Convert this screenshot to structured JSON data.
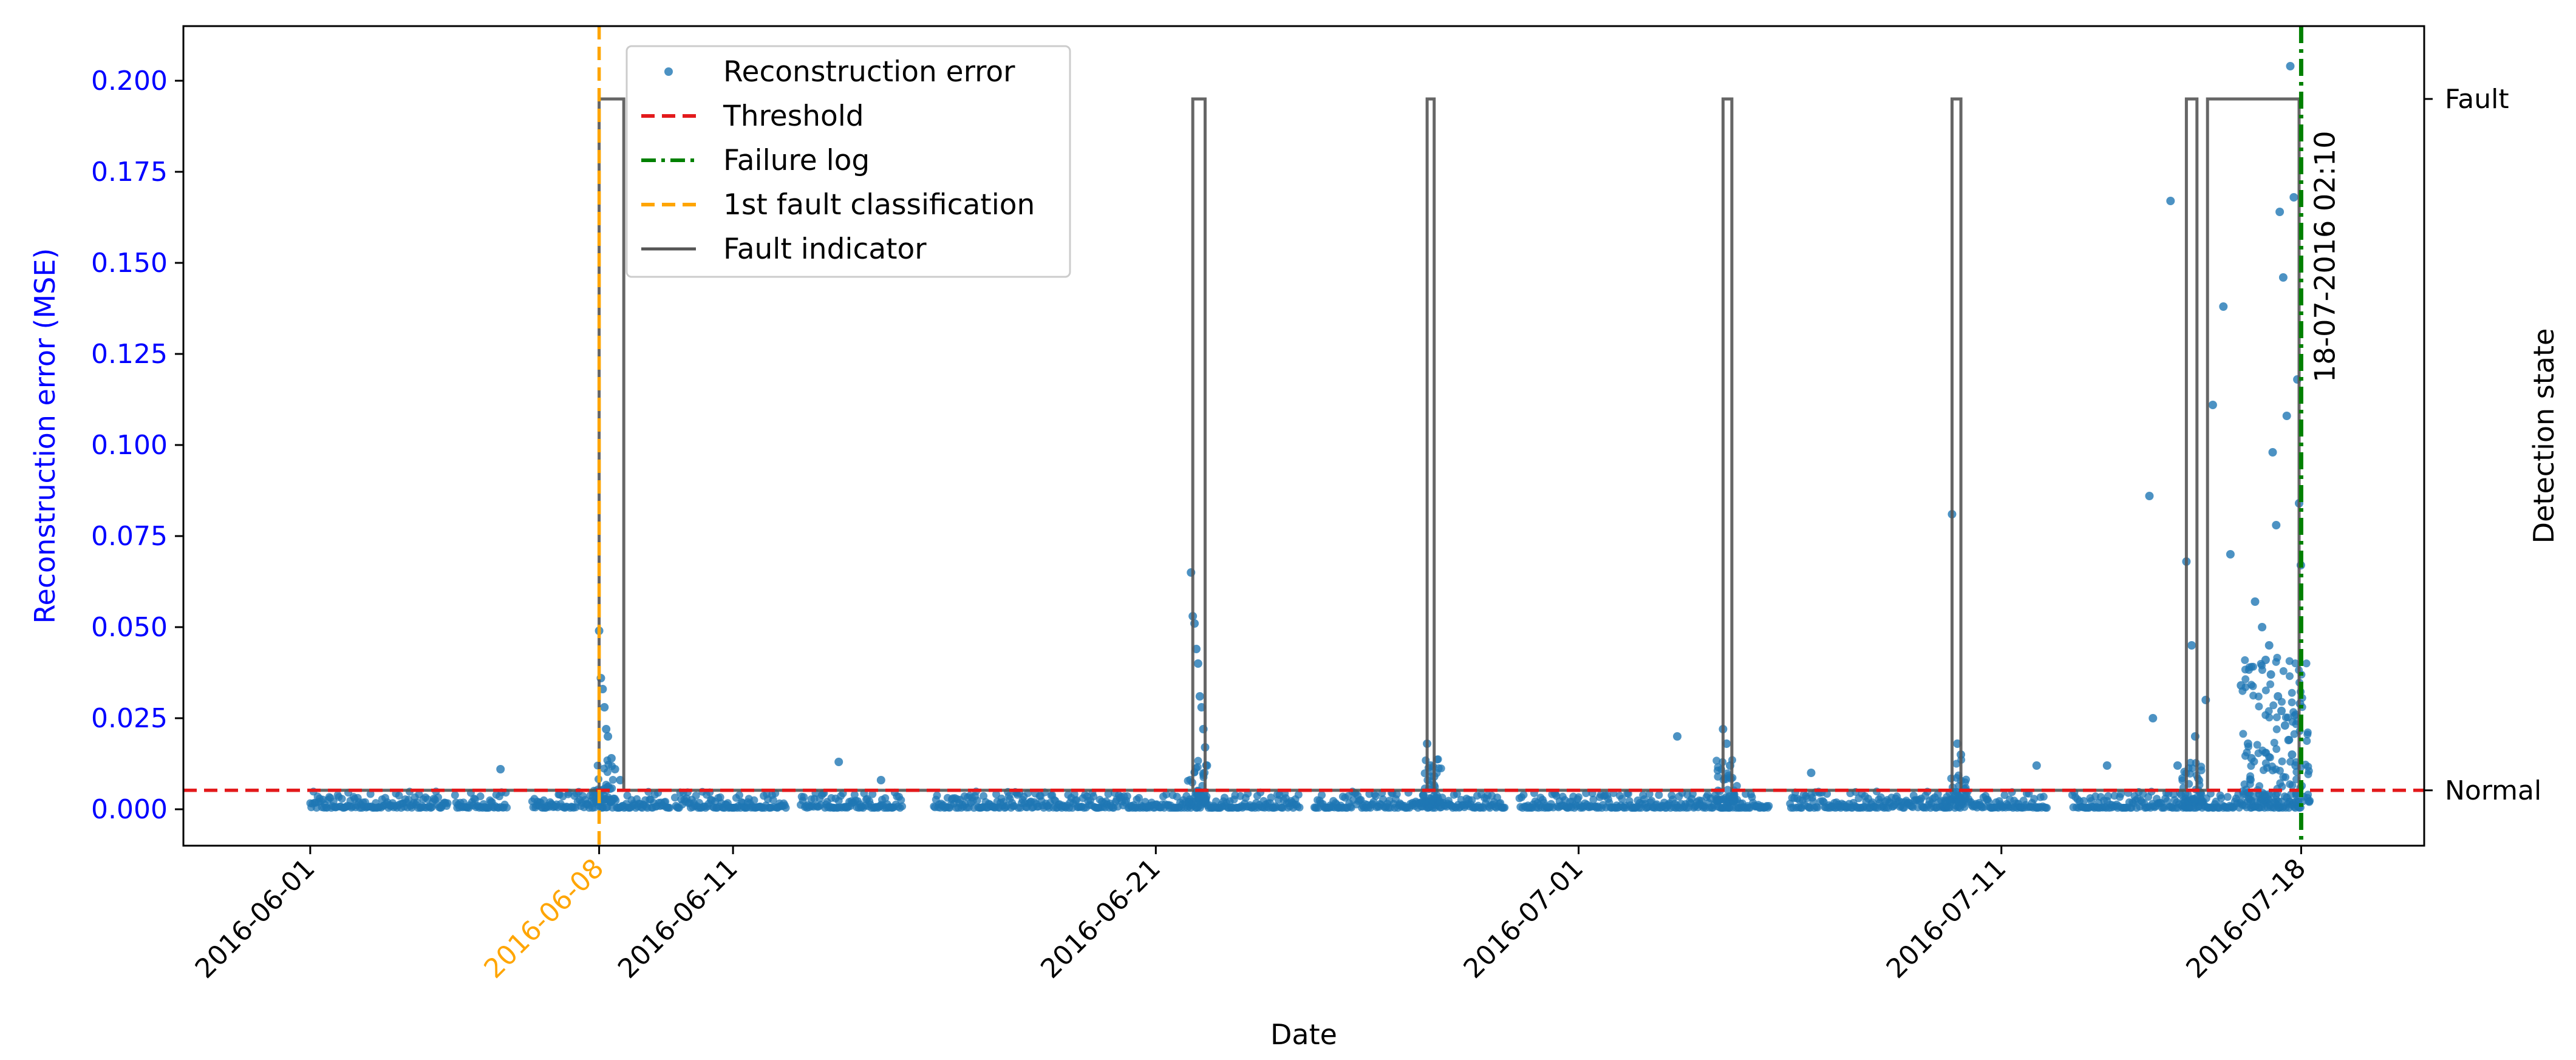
{
  "chart_data": {
    "type": "scatter",
    "xlabel": "Date",
    "ylabel": "Reconstruction error (MSE)",
    "y2label": "Detection state",
    "x_range": [
      "2016-05-29",
      "2016-07-21"
    ],
    "ylim": [
      -0.01,
      0.215
    ],
    "x_ticks": [
      {
        "date": "2016-06-01",
        "label": "2016-06-01",
        "color": "#000000"
      },
      {
        "date": "2016-06-07T20:00",
        "label": "2016-06-08",
        "color": "#ffa500"
      },
      {
        "date": "2016-06-11",
        "label": "2016-06-11",
        "color": "#000000"
      },
      {
        "date": "2016-06-21",
        "label": "2016-06-21",
        "color": "#000000"
      },
      {
        "date": "2016-07-01",
        "label": "2016-07-01",
        "color": "#000000"
      },
      {
        "date": "2016-07-11",
        "label": "2016-07-11",
        "color": "#000000"
      },
      {
        "date": "2016-07-18T02:10",
        "label": "2016-07-18",
        "color": "#000000"
      }
    ],
    "y_ticks": [
      "0.000",
      "0.025",
      "0.050",
      "0.075",
      "0.100",
      "0.125",
      "0.150",
      "0.175",
      "0.200"
    ],
    "y2_ticks": [
      {
        "label": "Normal",
        "value": 0.0052
      },
      {
        "label": "Fault",
        "value": 0.195
      }
    ],
    "threshold": 0.0052,
    "failure_log": {
      "date": "2016-07-18T02:10",
      "label": "18-07-2016 02:10"
    },
    "first_fault_date": "2016-06-07T20:00",
    "fault_intervals": [
      [
        "2016-06-07T20:00",
        "2016-06-08T10:00"
      ],
      [
        "2016-06-21T21:00",
        "2016-06-22T04:00"
      ],
      [
        "2016-06-27T10:00",
        "2016-06-27T14:00"
      ],
      [
        "2016-07-04T10:00",
        "2016-07-04T15:00"
      ],
      [
        "2016-07-09T20:00",
        "2016-07-10T01:00"
      ],
      [
        "2016-07-15T09:00",
        "2016-07-15T15:00"
      ],
      [
        "2016-07-15T21:00",
        "2016-07-18T01:00"
      ]
    ],
    "legend": {
      "placement": "upper-left-center",
      "entries": [
        {
          "label": "Reconstruction error",
          "kind": "scatter",
          "color": "#1f77b4"
        },
        {
          "label": "Threshold",
          "kind": "dashed",
          "color": "#e31a1c"
        },
        {
          "label": "Failure log",
          "kind": "dashdot",
          "color": "#008000"
        },
        {
          "label": "1st fault classification",
          "kind": "dashed",
          "color": "#ffa500"
        },
        {
          "label": "Fault indicator",
          "kind": "solid",
          "color": "#555555"
        }
      ]
    },
    "series": [
      {
        "name": "Reconstruction error",
        "color": "#1f77b4",
        "points": [
          [
            "2016-06-05T12:00",
            0.011
          ],
          [
            "2016-06-07T20:00",
            0.049
          ],
          [
            "2016-06-07T21:00",
            0.036
          ],
          [
            "2016-06-07T22:00",
            0.033
          ],
          [
            "2016-06-07T23:00",
            0.028
          ],
          [
            "2016-06-08T00:00",
            0.022
          ],
          [
            "2016-06-08T01:00",
            0.02
          ],
          [
            "2016-06-08T03:00",
            0.014
          ],
          [
            "2016-06-08T05:00",
            0.011
          ],
          [
            "2016-06-08T08:00",
            0.008
          ],
          [
            "2016-06-13T12:00",
            0.013
          ],
          [
            "2016-06-14T12:00",
            0.008
          ],
          [
            "2016-06-21T20:00",
            0.065
          ],
          [
            "2016-06-21T21:00",
            0.053
          ],
          [
            "2016-06-21T22:00",
            0.051
          ],
          [
            "2016-06-21T23:00",
            0.044
          ],
          [
            "2016-06-22T00:00",
            0.04
          ],
          [
            "2016-06-22T01:00",
            0.031
          ],
          [
            "2016-06-22T02:00",
            0.028
          ],
          [
            "2016-06-22T03:00",
            0.022
          ],
          [
            "2016-06-22T04:00",
            0.017
          ],
          [
            "2016-06-22T05:00",
            0.012
          ],
          [
            "2016-06-27T10:00",
            0.018
          ],
          [
            "2016-06-27T12:00",
            0.012
          ],
          [
            "2016-06-27T14:00",
            0.009
          ],
          [
            "2016-07-03T08:00",
            0.02
          ],
          [
            "2016-07-04T10:00",
            0.022
          ],
          [
            "2016-07-04T12:00",
            0.018
          ],
          [
            "2016-07-04T14:00",
            0.012
          ],
          [
            "2016-07-06T12:00",
            0.01
          ],
          [
            "2016-07-09T20:00",
            0.081
          ],
          [
            "2016-07-09T23:00",
            0.018
          ],
          [
            "2016-07-10T01:00",
            0.015
          ],
          [
            "2016-07-11T20:00",
            0.012
          ],
          [
            "2016-07-13T12:00",
            0.012
          ],
          [
            "2016-07-14T12:00",
            0.086
          ],
          [
            "2016-07-14T14:00",
            0.025
          ],
          [
            "2016-07-15T00:00",
            0.167
          ],
          [
            "2016-07-15T09:00",
            0.068
          ],
          [
            "2016-07-15T12:00",
            0.045
          ],
          [
            "2016-07-15T14:00",
            0.02
          ],
          [
            "2016-07-15T20:00",
            0.03
          ],
          [
            "2016-07-16T00:00",
            0.111
          ],
          [
            "2016-07-16T06:00",
            0.138
          ],
          [
            "2016-07-16T10:00",
            0.07
          ],
          [
            "2016-07-16T16:00",
            0.034
          ],
          [
            "2016-07-17T00:00",
            0.057
          ],
          [
            "2016-07-17T04:00",
            0.05
          ],
          [
            "2016-07-17T08:00",
            0.045
          ],
          [
            "2016-07-17T10:00",
            0.098
          ],
          [
            "2016-07-17T12:00",
            0.078
          ],
          [
            "2016-07-17T14:00",
            0.164
          ],
          [
            "2016-07-17T16:00",
            0.146
          ],
          [
            "2016-07-17T18:00",
            0.108
          ],
          [
            "2016-07-17T20:00",
            0.204
          ],
          [
            "2016-07-17T22:00",
            0.168
          ],
          [
            "2016-07-18T00:00",
            0.118
          ],
          [
            "2016-07-18T01:00",
            0.084
          ],
          [
            "2016-07-18T02:00",
            0.067
          ],
          [
            "2016-07-17T06:00",
            0.041
          ],
          [
            "2016-07-17T09:00",
            0.037
          ],
          [
            "2016-07-17T13:00",
            0.031
          ],
          [
            "2016-07-17T15:00",
            0.027
          ],
          [
            "2016-07-17T17:00",
            0.023
          ],
          [
            "2016-07-17T19:00",
            0.019
          ],
          [
            "2016-07-17T21:00",
            0.015
          ],
          [
            "2016-07-17T23:00",
            0.012
          ],
          [
            "2016-07-16T20:00",
            0.018
          ],
          [
            "2016-07-16T22:00",
            0.014
          ],
          [
            "2016-07-15T04:00",
            0.012
          ],
          [
            "2016-07-18T01:30",
            0.029
          ]
        ]
      }
    ]
  }
}
